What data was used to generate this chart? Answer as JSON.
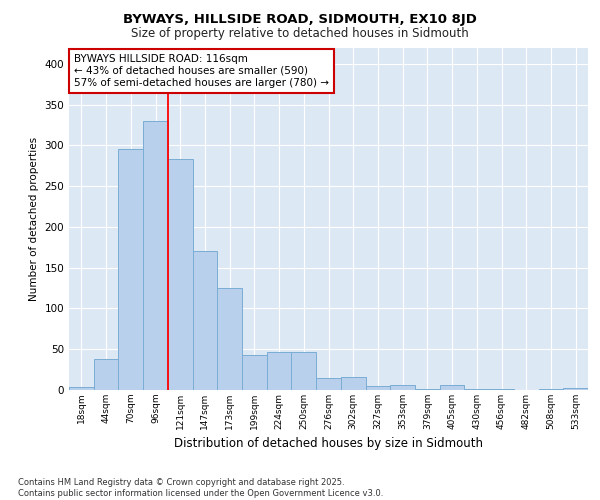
{
  "title_line1": "BYWAYS, HILLSIDE ROAD, SIDMOUTH, EX10 8JD",
  "title_line2": "Size of property relative to detached houses in Sidmouth",
  "xlabel": "Distribution of detached houses by size in Sidmouth",
  "ylabel": "Number of detached properties",
  "categories": [
    "18sqm",
    "44sqm",
    "70sqm",
    "96sqm",
    "121sqm",
    "147sqm",
    "173sqm",
    "199sqm",
    "224sqm",
    "250sqm",
    "276sqm",
    "302sqm",
    "327sqm",
    "353sqm",
    "379sqm",
    "405sqm",
    "430sqm",
    "456sqm",
    "482sqm",
    "508sqm",
    "533sqm"
  ],
  "values": [
    4,
    38,
    295,
    330,
    283,
    171,
    125,
    43,
    46,
    46,
    15,
    16,
    5,
    6,
    1,
    6,
    1,
    1,
    0,
    1,
    3
  ],
  "bar_color": "#b8d0ec",
  "bar_edge_color": "#7aacd4",
  "plot_bg_color": "#dde8f5",
  "fig_bg_color": "#ffffff",
  "grid_color": "#ffffff",
  "red_line_x": 3.5,
  "annotation_text": "BYWAYS HILLSIDE ROAD: 116sqm\n← 43% of detached houses are smaller (590)\n57% of semi-detached houses are larger (780) →",
  "annotation_box_color": "#ffffff",
  "annotation_box_edge": "#cc0000",
  "footnote": "Contains HM Land Registry data © Crown copyright and database right 2025.\nContains public sector information licensed under the Open Government Licence v3.0.",
  "ylim": [
    0,
    420
  ],
  "yticks": [
    0,
    50,
    100,
    150,
    200,
    250,
    300,
    350,
    400
  ]
}
